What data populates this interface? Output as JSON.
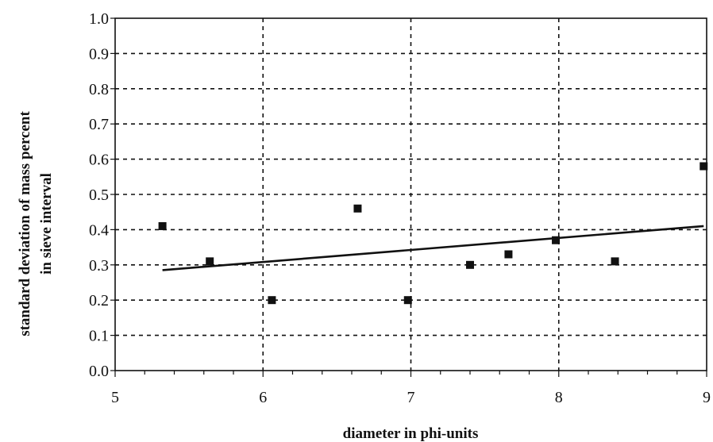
{
  "chart_data": {
    "type": "scatter",
    "title": "",
    "xlabel": "diameter in phi-units",
    "ylabel": "standard deviation of mass percent in sieve interval",
    "ylabel_lines": [
      "standard deviation of mass percent",
      "in sieve interval"
    ],
    "xlim": [
      5,
      9
    ],
    "ylim": [
      0,
      1.0
    ],
    "xticks": [
      "5",
      "6",
      "7",
      "8",
      "9"
    ],
    "yticks": [
      "0.0",
      "0.1",
      "0.2",
      "0.3",
      "0.4",
      "0.5",
      "0.6",
      "0.7",
      "0.8",
      "0.9",
      "1.0"
    ],
    "grid": "dashed",
    "legend": "none",
    "series": [
      {
        "marker": "square",
        "color": "#111111",
        "points": [
          {
            "x": 5.32,
            "y": 0.41
          },
          {
            "x": 5.64,
            "y": 0.31
          },
          {
            "x": 6.06,
            "y": 0.2
          },
          {
            "x": 6.64,
            "y": 0.46
          },
          {
            "x": 6.98,
            "y": 0.2
          },
          {
            "x": 7.4,
            "y": 0.3
          },
          {
            "x": 7.66,
            "y": 0.33
          },
          {
            "x": 7.98,
            "y": 0.37
          },
          {
            "x": 8.38,
            "y": 0.31
          },
          {
            "x": 8.98,
            "y": 0.58
          }
        ]
      }
    ],
    "trendline": {
      "type": "linear",
      "color": "#111111",
      "x": [
        5.32,
        8.98
      ],
      "y": [
        0.285,
        0.41
      ]
    }
  }
}
